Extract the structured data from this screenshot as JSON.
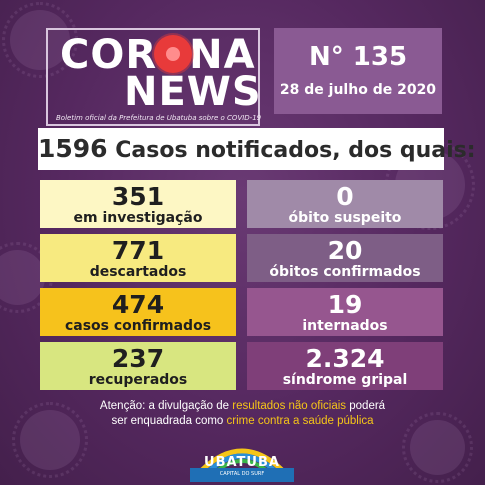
{
  "logo": {
    "corona_pre": "COR",
    "corona_post": "NA",
    "news": "NEWS",
    "subtitle": "Boletim oficial da Prefeitura de Ubatuba sobre o COVID-19"
  },
  "edition": {
    "number": "N° 135",
    "date": "28 de julho de 2020"
  },
  "headline": {
    "total": "1596",
    "text": " Casos notificados, dos quais:"
  },
  "stats": {
    "investigacao": {
      "value": "351",
      "label": "em investigação"
    },
    "descartados": {
      "value": "771",
      "label": "descartados"
    },
    "confirmados": {
      "value": "474",
      "label": "casos confirmados"
    },
    "recuperados": {
      "value": "237",
      "label": "recuperados"
    },
    "obito_suspeito": {
      "value": "0",
      "label": "óbito suspeito"
    },
    "obitos_confirmados": {
      "value": "20",
      "label": "óbitos confirmados"
    },
    "internados": {
      "value": "19",
      "label": "internados"
    },
    "sindrome_gripal": {
      "value": "2.324",
      "label": "síndrome gripal"
    }
  },
  "warning": {
    "part1": "Atenção: a divulgação de ",
    "highlight1": "resultados não oficiais",
    "part2": " poderá",
    "part3": "ser enquadrada como ",
    "highlight2": "crime contra a saúde pública"
  },
  "footer": {
    "name": "UBATUBA",
    "tagline": "CAPITAL DO SURF"
  },
  "colors": {
    "background": "#55285f",
    "highlight": "#f5c518",
    "logo_accent": "#e83a3a"
  }
}
